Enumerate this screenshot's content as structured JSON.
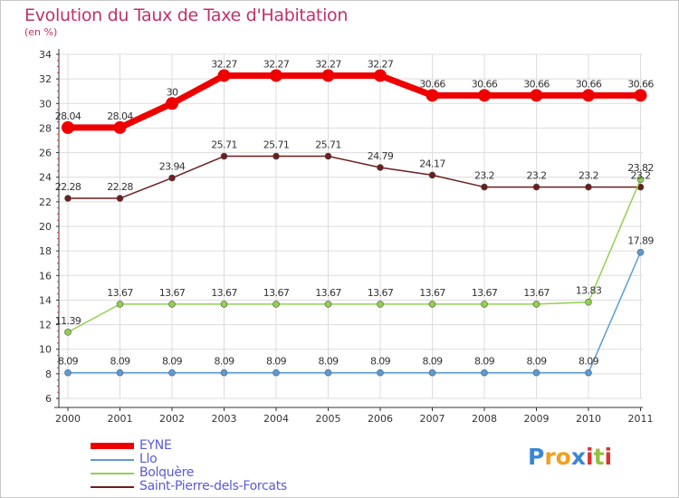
{
  "chart_data": {
    "type": "line",
    "title": "Evolution du Taux de Taxe d'Habitation",
    "subtitle": "(en %)",
    "xlabel": "",
    "ylabel": "(en %)",
    "x": [
      "2000",
      "2001",
      "2002",
      "2003",
      "2004",
      "2005",
      "2006",
      "2007",
      "2008",
      "2009",
      "2010",
      "2011"
    ],
    "ylim": [
      6,
      34
    ],
    "yticks": [
      6,
      8,
      10,
      12,
      14,
      16,
      18,
      20,
      22,
      24,
      26,
      28,
      30,
      32,
      34
    ],
    "grid": true,
    "legend_position": "bottom-left",
    "series": [
      {
        "name": "EYNE",
        "color": "#ee0000",
        "width": "thick",
        "values": [
          28.04,
          28.04,
          30,
          32.27,
          32.27,
          32.27,
          32.27,
          30.66,
          30.66,
          30.66,
          30.66,
          30.66
        ],
        "labels": [
          "28.04",
          "28.04",
          "30",
          "32.27",
          "32.27",
          "32.27",
          "32.27",
          "30.66",
          "30.66",
          "30.66",
          "30.66",
          "30.66"
        ]
      },
      {
        "name": "Llo",
        "color": "#5b9bd5",
        "width": "thin",
        "values": [
          8.09,
          8.09,
          8.09,
          8.09,
          8.09,
          8.09,
          8.09,
          8.09,
          8.09,
          8.09,
          8.09,
          17.89
        ],
        "labels": [
          "8.09",
          "8.09",
          "8.09",
          "8.09",
          "8.09",
          "8.09",
          "8.09",
          "8.09",
          "8.09",
          "8.09",
          "8.09",
          "17.89"
        ]
      },
      {
        "name": "Bolquère",
        "color": "#92d050",
        "width": "thin",
        "values": [
          11.39,
          13.67,
          13.67,
          13.67,
          13.67,
          13.67,
          13.67,
          13.67,
          13.67,
          13.67,
          13.83,
          23.82
        ],
        "labels": [
          "11.39",
          "13.67",
          "13.67",
          "13.67",
          "13.67",
          "13.67",
          "13.67",
          "13.67",
          "13.67",
          "13.67",
          "13.83",
          "23.82"
        ]
      },
      {
        "name": "Saint-Pierre-dels-Forcats",
        "color": "#6b1e1e",
        "width": "thin",
        "values": [
          22.28,
          22.28,
          23.94,
          25.71,
          25.71,
          25.71,
          24.79,
          24.17,
          23.2,
          23.2,
          23.2,
          23.2
        ],
        "labels": [
          "22.28",
          "22.28",
          "23.94",
          "25.71",
          "25.71",
          "25.71",
          "24.79",
          "24.17",
          "23.2",
          "23.2",
          "23.2",
          "23.2"
        ]
      }
    ]
  },
  "logo": {
    "letters": [
      "P",
      "r",
      "o",
      "x",
      "i",
      "t",
      "i"
    ],
    "colors": [
      "#3a86d6",
      "#f0a020",
      "#f0a020",
      "#3a86d6",
      "#e03030",
      "#92c040",
      "#e03030"
    ]
  }
}
